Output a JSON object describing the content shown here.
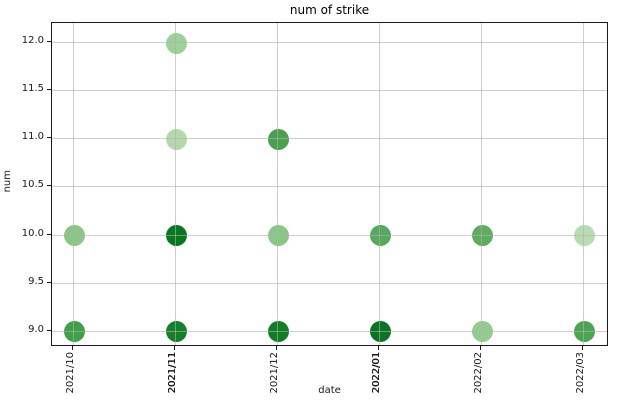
{
  "chart_data": {
    "type": "scatter",
    "title": "num of strike",
    "xlabel": "date",
    "ylabel": "num",
    "x_categories": [
      {
        "label": "2021/10",
        "bold": false
      },
      {
        "label": "2021/11",
        "bold": true
      },
      {
        "label": "2021/12",
        "bold": false
      },
      {
        "label": "2022/01",
        "bold": true
      },
      {
        "label": "2022/02",
        "bold": false
      },
      {
        "label": "2022/03",
        "bold": false
      }
    ],
    "y_ticks": [
      "12.0",
      "11.5",
      "11.0",
      "10.5",
      "10.0",
      "9.5",
      "9.0"
    ],
    "ylim": [
      8.83,
      12.23
    ],
    "grid": true,
    "legend": "none",
    "marker_color_meaning": "green shade intensity per point",
    "points": [
      {
        "x": "2021/10",
        "y": 9.0,
        "color": "#3fa04a"
      },
      {
        "x": "2021/10",
        "y": 10.0,
        "color": "#8ac686"
      },
      {
        "x": "2021/11",
        "y": 9.0,
        "color": "#15802b"
      },
      {
        "x": "2021/11",
        "y": 10.0,
        "color": "#077722"
      },
      {
        "x": "2021/11",
        "y": 11.0,
        "color": "#b3daab"
      },
      {
        "x": "2021/11",
        "y": 12.0,
        "color": "#9ed09a"
      },
      {
        "x": "2021/12",
        "y": 9.0,
        "color": "#107d27"
      },
      {
        "x": "2021/12",
        "y": 10.0,
        "color": "#8ac686"
      },
      {
        "x": "2021/12",
        "y": 11.0,
        "color": "#4ba04f"
      },
      {
        "x": "2022/01",
        "y": 9.0,
        "color": "#0a7423"
      },
      {
        "x": "2022/01",
        "y": 10.0,
        "color": "#57a95d"
      },
      {
        "x": "2022/02",
        "y": 9.0,
        "color": "#93cb90"
      },
      {
        "x": "2022/02",
        "y": 10.0,
        "color": "#5dac60"
      },
      {
        "x": "2022/03",
        "y": 9.0,
        "color": "#4ba550"
      },
      {
        "x": "2022/03",
        "y": 10.0,
        "color": "#b8dcb2"
      }
    ],
    "colors": {
      "grid": "#c8c8c8",
      "spine": "#1a1a1a",
      "background": "#ffffff"
    }
  }
}
